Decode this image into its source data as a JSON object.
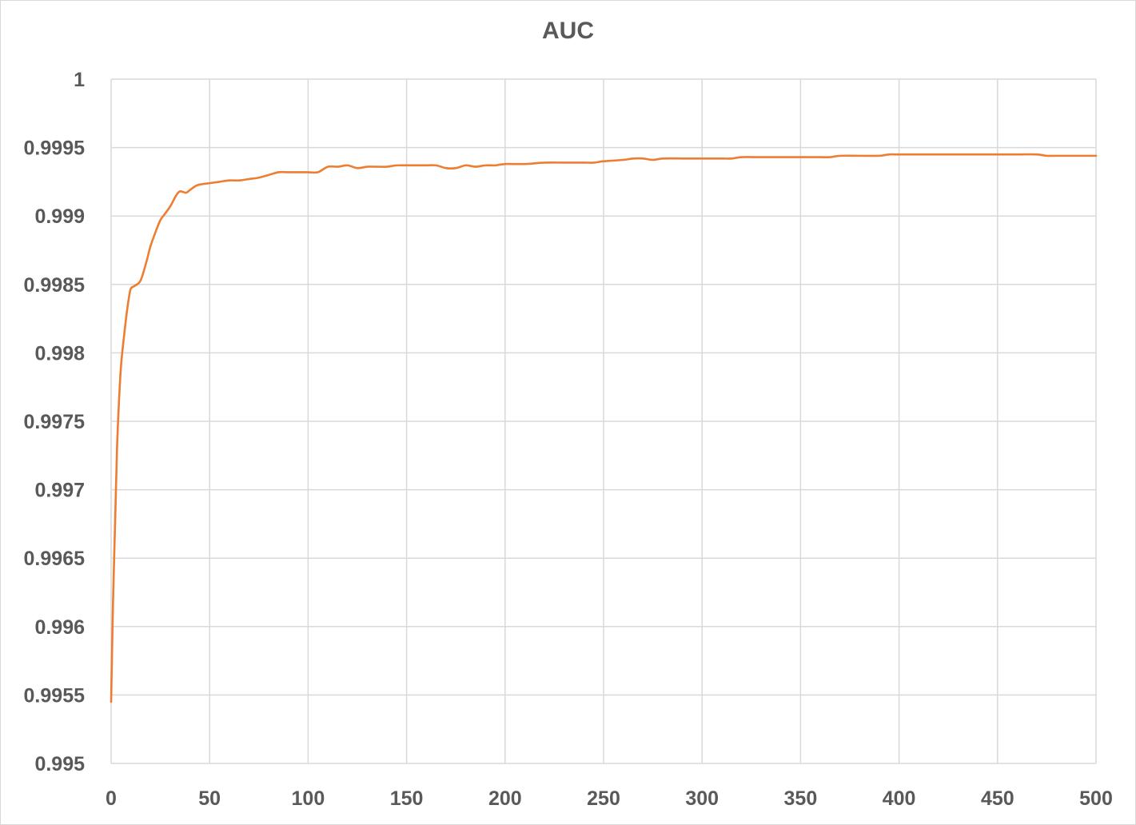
{
  "chart_data": {
    "type": "line",
    "title": "AUC",
    "xlabel": "",
    "ylabel": "",
    "xlim": [
      0,
      500
    ],
    "ylim": [
      0.995,
      1
    ],
    "x_ticks": [
      0,
      50,
      100,
      150,
      200,
      250,
      300,
      350,
      400,
      450,
      500
    ],
    "y_ticks": [
      0.995,
      0.9955,
      0.996,
      0.9965,
      0.997,
      0.9975,
      0.998,
      0.9985,
      0.999,
      0.9995,
      1
    ],
    "x_tick_labels": [
      "0",
      "50",
      "100",
      "150",
      "200",
      "250",
      "300",
      "350",
      "400",
      "450",
      "500"
    ],
    "y_tick_labels": [
      "0.995",
      "0.9955",
      "0.996",
      "0.9965",
      "0.997",
      "0.9975",
      "0.998",
      "0.9985",
      "0.999",
      "0.9995",
      "1"
    ],
    "grid": true,
    "legend": "none",
    "series": [
      {
        "color": "#ED7D31",
        "x": [
          0,
          1,
          2,
          3,
          4,
          5,
          6,
          7,
          8,
          9,
          10,
          12,
          15,
          18,
          20,
          23,
          25,
          27,
          30,
          33,
          35,
          38,
          40,
          43,
          45,
          50,
          55,
          60,
          65,
          70,
          75,
          80,
          85,
          90,
          95,
          100,
          105,
          110,
          115,
          120,
          125,
          130,
          135,
          140,
          145,
          150,
          160,
          165,
          170,
          175,
          180,
          185,
          190,
          195,
          200,
          210,
          220,
          230,
          240,
          245,
          250,
          260,
          265,
          270,
          275,
          280,
          290,
          300,
          310,
          315,
          320,
          330,
          340,
          350,
          360,
          365,
          370,
          380,
          390,
          395,
          400,
          420,
          440,
          460,
          470,
          475,
          480,
          490,
          500
        ],
        "values": [
          0.99545,
          0.9962,
          0.99675,
          0.9973,
          0.99765,
          0.9979,
          0.99805,
          0.99818,
          0.9983,
          0.9984,
          0.99847,
          0.99849,
          0.99853,
          0.99867,
          0.99878,
          0.9989,
          0.99897,
          0.99901,
          0.99907,
          0.99915,
          0.99918,
          0.99917,
          0.99919,
          0.99922,
          0.99923,
          0.99924,
          0.99925,
          0.99926,
          0.99926,
          0.99927,
          0.99928,
          0.9993,
          0.99932,
          0.99932,
          0.99932,
          0.99932,
          0.99932,
          0.99936,
          0.99936,
          0.99937,
          0.99935,
          0.99936,
          0.99936,
          0.99936,
          0.99937,
          0.99937,
          0.99937,
          0.99937,
          0.99935,
          0.99935,
          0.99937,
          0.99936,
          0.99937,
          0.99937,
          0.99938,
          0.99938,
          0.99939,
          0.99939,
          0.99939,
          0.99939,
          0.9994,
          0.99941,
          0.99942,
          0.99942,
          0.99941,
          0.99942,
          0.99942,
          0.99942,
          0.99942,
          0.99942,
          0.99943,
          0.99943,
          0.99943,
          0.99943,
          0.99943,
          0.99943,
          0.99944,
          0.99944,
          0.99944,
          0.99945,
          0.99945,
          0.99945,
          0.99945,
          0.99945,
          0.99945,
          0.99944,
          0.99944,
          0.99944,
          0.99944
        ]
      }
    ]
  }
}
